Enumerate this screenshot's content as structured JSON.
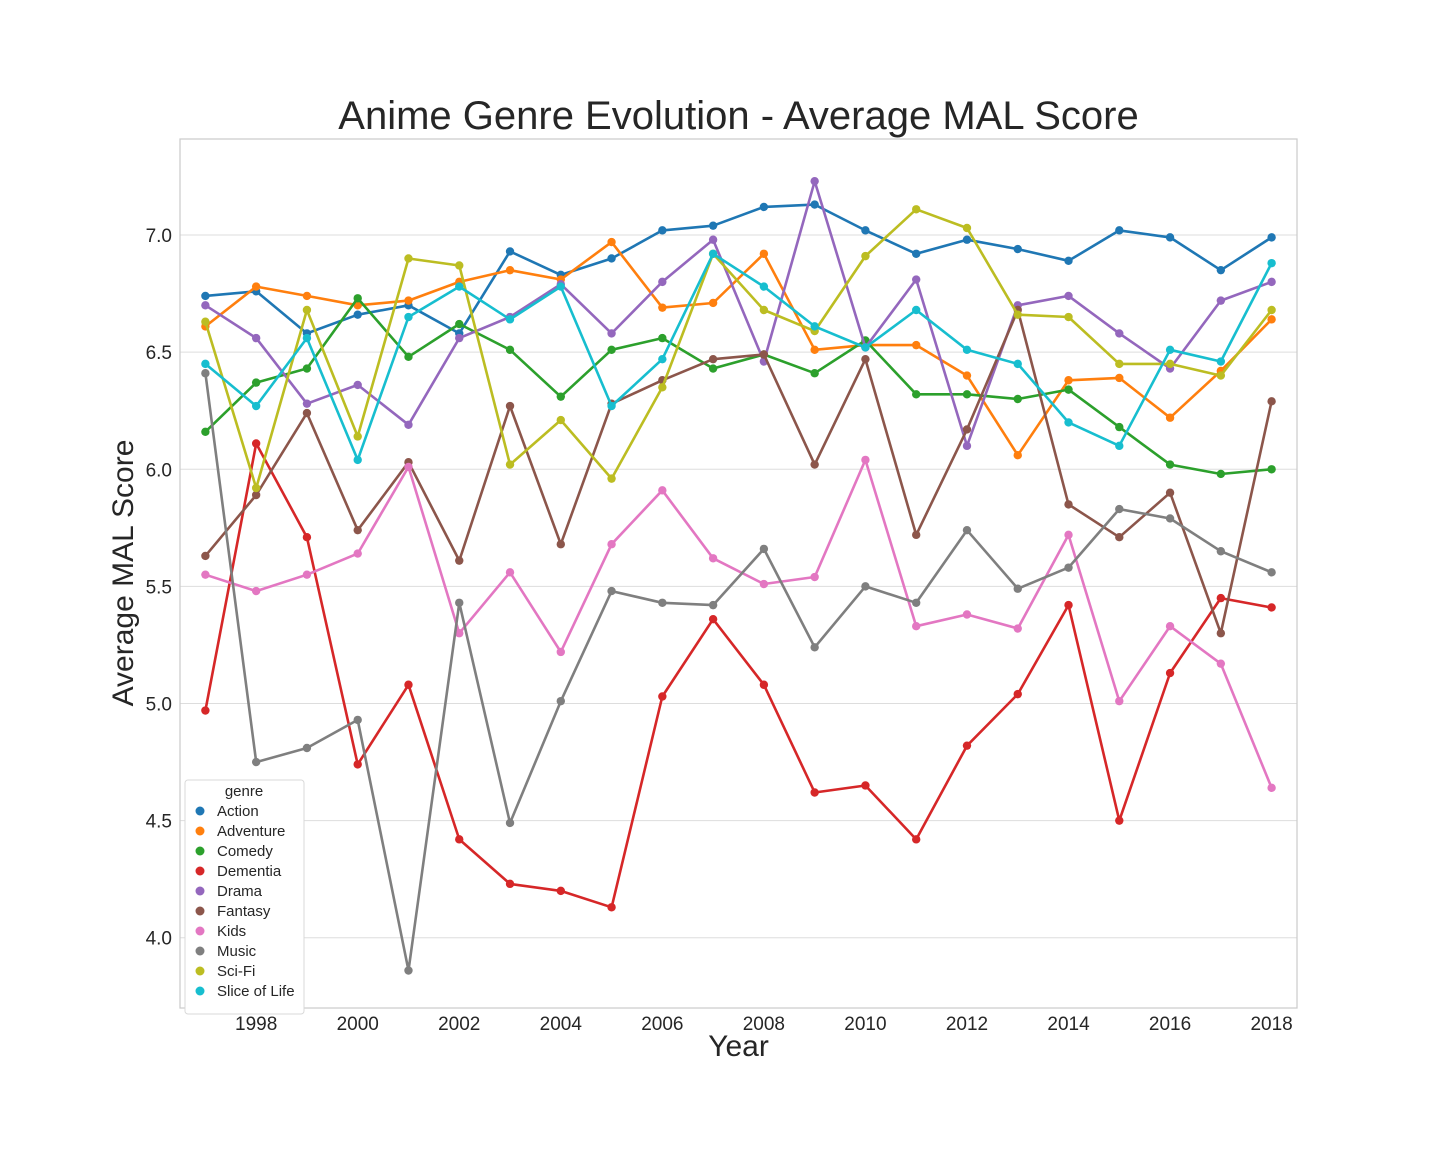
{
  "chart_data": {
    "type": "line",
    "title": "Anime Genre Evolution - Average MAL Score",
    "xlabel": "Year",
    "ylabel": "Average MAL Score",
    "xlim": [
      1996.5,
      2018.5
    ],
    "ylim": [
      3.7,
      7.41
    ],
    "x_ticks": [
      1998,
      2000,
      2002,
      2004,
      2006,
      2008,
      2010,
      2012,
      2014,
      2016,
      2018
    ],
    "y_ticks": [
      4.0,
      4.5,
      5.0,
      5.5,
      6.0,
      6.5,
      7.0
    ],
    "y_tick_labels": [
      "4.0",
      "4.5",
      "5.0",
      "5.5",
      "6.0",
      "6.5",
      "7.0"
    ],
    "grid": true,
    "legend": {
      "title": "genre",
      "placement": "lower-left"
    },
    "x": [
      1997,
      1998,
      1999,
      2000,
      2001,
      2002,
      2003,
      2004,
      2005,
      2006,
      2007,
      2008,
      2009,
      2010,
      2011,
      2012,
      2013,
      2014,
      2015,
      2016,
      2017,
      2018
    ],
    "series": [
      {
        "name": "Action",
        "color": "#1f77b4",
        "values": [
          6.74,
          6.76,
          6.58,
          6.66,
          6.7,
          6.58,
          6.93,
          6.83,
          6.9,
          7.02,
          7.04,
          7.12,
          7.13,
          7.02,
          6.92,
          6.98,
          6.94,
          6.89,
          7.02,
          6.99,
          6.85,
          6.99
        ]
      },
      {
        "name": "Adventure",
        "color": "#ff7f0e",
        "values": [
          6.61,
          6.78,
          6.74,
          6.7,
          6.72,
          6.8,
          6.85,
          6.81,
          6.97,
          6.69,
          6.71,
          6.92,
          6.51,
          6.53,
          6.53,
          6.4,
          6.06,
          6.38,
          6.39,
          6.22,
          6.42,
          6.64
        ]
      },
      {
        "name": "Comedy",
        "color": "#2ca02c",
        "values": [
          6.16,
          6.37,
          6.43,
          6.73,
          6.48,
          6.62,
          6.51,
          6.31,
          6.51,
          6.56,
          6.43,
          6.49,
          6.41,
          6.55,
          6.32,
          6.32,
          6.3,
          6.34,
          6.18,
          6.02,
          5.98,
          6.0
        ]
      },
      {
        "name": "Dementia",
        "color": "#d62728",
        "values": [
          4.97,
          6.11,
          5.71,
          4.74,
          5.08,
          4.42,
          4.23,
          4.2,
          4.13,
          5.03,
          5.36,
          5.08,
          4.62,
          4.65,
          4.42,
          4.82,
          5.04,
          5.42,
          4.5,
          5.13,
          5.45,
          5.41
        ]
      },
      {
        "name": "Drama",
        "color": "#9467bd",
        "values": [
          6.7,
          6.56,
          6.28,
          6.36,
          6.19,
          6.56,
          6.65,
          6.79,
          6.58,
          6.8,
          6.98,
          6.46,
          7.23,
          6.52,
          6.81,
          6.1,
          6.7,
          6.74,
          6.58,
          6.43,
          6.72,
          6.8
        ]
      },
      {
        "name": "Fantasy",
        "color": "#8c564b",
        "values": [
          5.63,
          5.89,
          6.24,
          5.74,
          6.03,
          5.61,
          6.27,
          5.68,
          6.28,
          6.38,
          6.47,
          6.49,
          6.02,
          6.47,
          5.72,
          6.17,
          6.68,
          5.85,
          5.71,
          5.9,
          5.3,
          6.29
        ]
      },
      {
        "name": "Kids",
        "color": "#e377c2",
        "values": [
          5.55,
          5.48,
          5.55,
          5.64,
          6.01,
          5.3,
          5.56,
          5.22,
          5.68,
          5.91,
          5.62,
          5.51,
          5.54,
          6.04,
          5.33,
          5.38,
          5.32,
          5.72,
          5.01,
          5.33,
          5.17,
          4.64
        ]
      },
      {
        "name": "Music",
        "color": "#7f7f7f",
        "values": [
          6.41,
          4.75,
          4.81,
          4.93,
          3.86,
          5.43,
          4.49,
          5.01,
          5.48,
          5.43,
          5.42,
          5.66,
          5.24,
          5.5,
          5.43,
          5.74,
          5.49,
          5.58,
          5.83,
          5.79,
          5.65,
          5.56
        ]
      },
      {
        "name": "Sci-Fi",
        "color": "#bcbd22",
        "values": [
          6.63,
          5.92,
          6.68,
          6.14,
          6.9,
          6.87,
          6.02,
          6.21,
          5.96,
          6.35,
          6.92,
          6.68,
          6.59,
          6.91,
          7.11,
          7.03,
          6.66,
          6.65,
          6.45,
          6.45,
          6.4,
          6.68
        ]
      },
      {
        "name": "Slice of Life",
        "color": "#17becf",
        "values": [
          6.45,
          6.27,
          6.56,
          6.04,
          6.65,
          6.78,
          6.64,
          6.78,
          6.27,
          6.47,
          6.92,
          6.78,
          6.61,
          6.52,
          6.68,
          6.51,
          6.45,
          6.2,
          6.1,
          6.51,
          6.46,
          6.88
        ]
      }
    ]
  }
}
